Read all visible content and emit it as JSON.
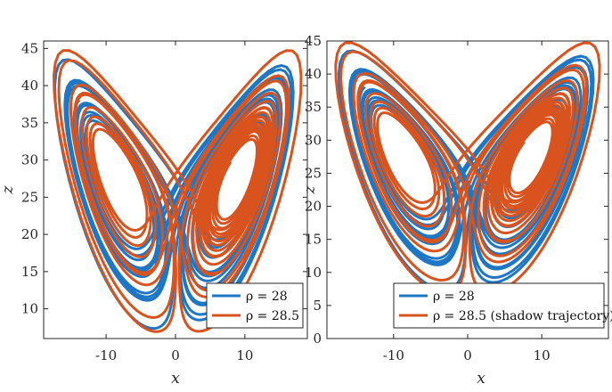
{
  "chart_data": [
    {
      "type": "line",
      "xlabel": "x",
      "ylabel": "z",
      "xlim": [
        -19,
        19
      ],
      "ylim": [
        6,
        46
      ],
      "xticks": [
        "-10",
        "0",
        "10"
      ],
      "xtick_values": [
        -10,
        0,
        10
      ],
      "yticks": [
        "10",
        "15",
        "20",
        "25",
        "30",
        "35",
        "40",
        "45"
      ],
      "ytick_values": [
        10,
        15,
        20,
        25,
        30,
        35,
        40,
        45
      ],
      "legend_position": "bottom-right",
      "series": [
        {
          "name": "ρ = 28",
          "color": "#1f77c4",
          "rho": 28,
          "offset": 0.0
        },
        {
          "name": "ρ = 28.5",
          "color": "#d9531e",
          "rho": 28.5,
          "offset": 0.3
        }
      ]
    },
    {
      "type": "line",
      "xlabel": "x",
      "ylabel": "z",
      "xlim": [
        -19,
        19
      ],
      "ylim": [
        0,
        45
      ],
      "xticks": [
        "-10",
        "0",
        "10"
      ],
      "xtick_values": [
        -10,
        0,
        10
      ],
      "yticks": [
        "0",
        "5",
        "10",
        "15",
        "20",
        "25",
        "30",
        "35",
        "40",
        "45"
      ],
      "ytick_values": [
        0,
        5,
        10,
        15,
        20,
        25,
        30,
        35,
        40,
        45
      ],
      "legend_position": "bottom-right",
      "series": [
        {
          "name": "ρ = 28",
          "color": "#1f77c4",
          "rho": 28,
          "offset": 0.0
        },
        {
          "name": "ρ = 28.5 (shadow trajectory)",
          "color": "#d9531e",
          "rho": 28.5,
          "offset": 0.0
        }
      ]
    }
  ]
}
